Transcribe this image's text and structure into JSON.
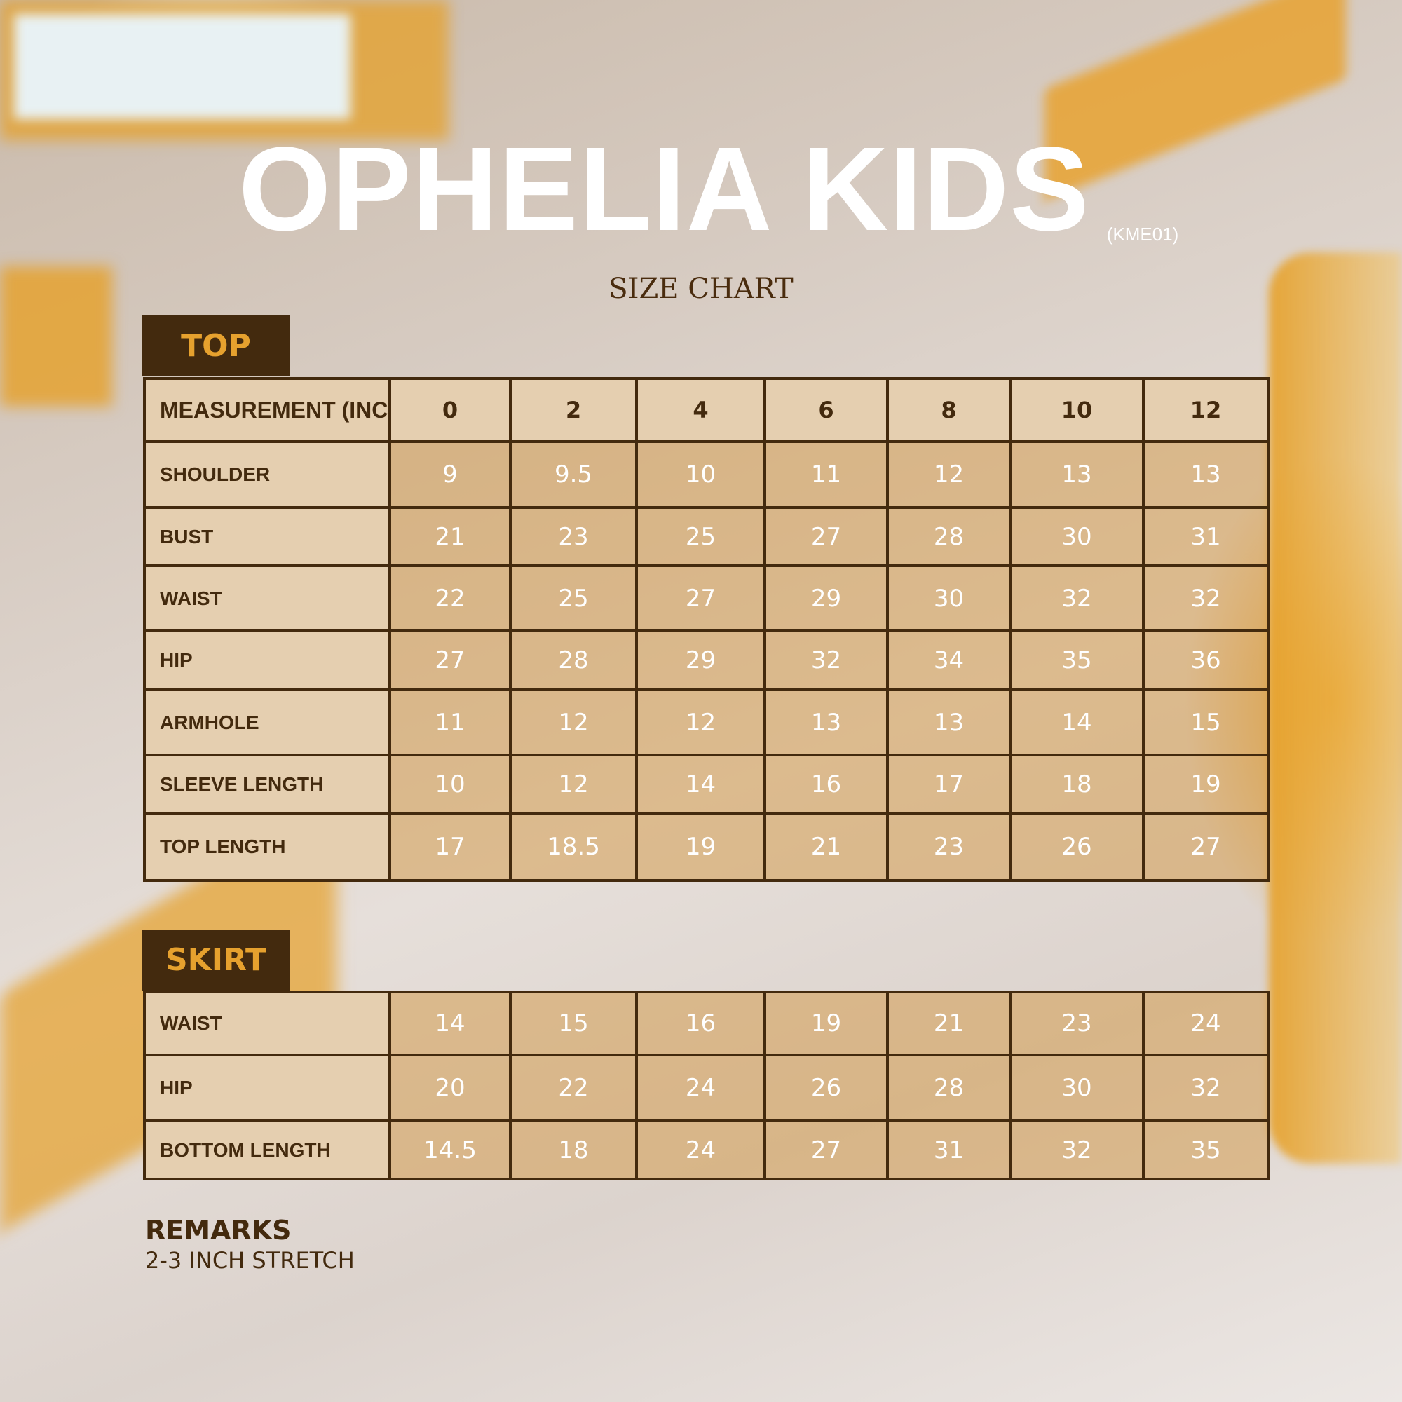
{
  "header": {
    "brand": "OPHELIA KIDS",
    "code": "(KME01)",
    "subtitle": "SIZE CHART"
  },
  "top": {
    "tab_label": "TOP",
    "header_label": "MEASUREMENT (INCH)",
    "sizes": [
      "0",
      "2",
      "4",
      "6",
      "8",
      "10",
      "12"
    ],
    "rows": [
      {
        "label": "SHOULDER",
        "values": [
          "9",
          "9.5",
          "10",
          "11",
          "12",
          "13",
          "13"
        ]
      },
      {
        "label": "BUST",
        "values": [
          "21",
          "23",
          "25",
          "27",
          "28",
          "30",
          "31"
        ]
      },
      {
        "label": "WAIST",
        "values": [
          "22",
          "25",
          "27",
          "29",
          "30",
          "32",
          "32"
        ]
      },
      {
        "label": "HIP",
        "values": [
          "27",
          "28",
          "29",
          "32",
          "34",
          "35",
          "36"
        ]
      },
      {
        "label": "ARMHOLE",
        "values": [
          "11",
          "12",
          "12",
          "13",
          "13",
          "14",
          "15"
        ]
      },
      {
        "label": "SLEEVE LENGTH",
        "values": [
          "10",
          "12",
          "14",
          "16",
          "17",
          "18",
          "19"
        ]
      },
      {
        "label": "TOP LENGTH",
        "values": [
          "17",
          "18.5",
          "19",
          "21",
          "23",
          "26",
          "27"
        ]
      }
    ]
  },
  "skirt": {
    "tab_label": "SKIRT",
    "rows": [
      {
        "label": "WAIST",
        "values": [
          "14",
          "15",
          "16",
          "19",
          "21",
          "23",
          "24"
        ]
      },
      {
        "label": "HIP",
        "values": [
          "20",
          "22",
          "24",
          "26",
          "28",
          "30",
          "32"
        ]
      },
      {
        "label": "BOTTOM LENGTH",
        "values": [
          "14.5",
          "18",
          "24",
          "27",
          "31",
          "32",
          "35"
        ]
      }
    ]
  },
  "remarks": {
    "heading": "REMARKS",
    "text": "2-3 INCH STRETCH"
  },
  "colors": {
    "dark_brown": "#432a0e",
    "accent_orange": "#e6a12e",
    "label_bg": "#e5cfb0"
  }
}
